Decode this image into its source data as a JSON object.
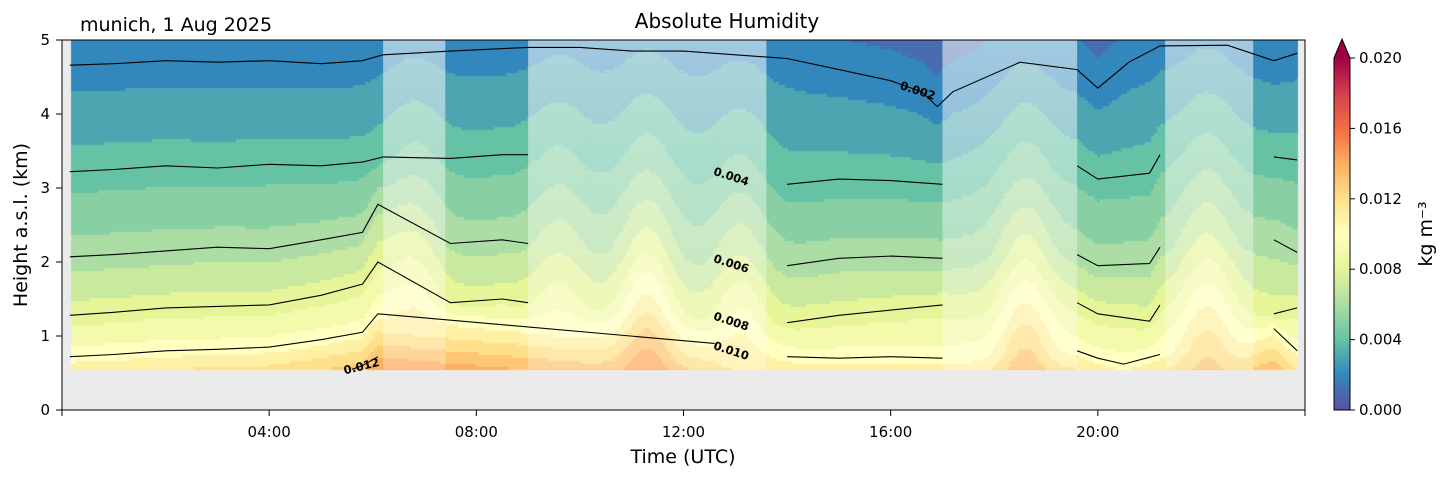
{
  "header": {
    "station_label": "munich, 1 Aug 2025",
    "title": "Absolute Humidity"
  },
  "chart_data": {
    "type": "contourf",
    "title": "Absolute Humidity",
    "subtitle": "munich, 1 Aug 2025",
    "xlabel": "Time (UTC)",
    "ylabel": "Height a.s.l. (km)",
    "xlim_hours": [
      0,
      24
    ],
    "ylim_km": [
      0,
      5
    ],
    "x_ticks": [
      {
        "hour": 4,
        "label": "04:00"
      },
      {
        "hour": 8,
        "label": "08:00"
      },
      {
        "hour": 12,
        "label": "12:00"
      },
      {
        "hour": 16,
        "label": "16:00"
      },
      {
        "hour": 20,
        "label": "20:00"
      }
    ],
    "y_ticks": [
      {
        "value": 0,
        "label": "0"
      },
      {
        "value": 1,
        "label": "1"
      },
      {
        "value": 2,
        "label": "2"
      },
      {
        "value": 3,
        "label": "3"
      },
      {
        "value": 4,
        "label": "4"
      },
      {
        "value": 5,
        "label": "5"
      }
    ],
    "data_bottom_km": 0.55,
    "data_start_hour": 0.15,
    "data_end_hour": 23.85,
    "colorbar": {
      "label": "kg m⁻³",
      "min": 0.0,
      "max": 0.02,
      "extend": "max",
      "ticks": [
        {
          "value": 0.0,
          "label": "0.000"
        },
        {
          "value": 0.004,
          "label": "0.004"
        },
        {
          "value": 0.008,
          "label": "0.008"
        },
        {
          "value": 0.012,
          "label": "0.012"
        },
        {
          "value": 0.016,
          "label": "0.016"
        },
        {
          "value": 0.02,
          "label": "0.020"
        }
      ],
      "colormap": [
        "#5e4fa2",
        "#3288bd",
        "#66c2a5",
        "#abdda4",
        "#e6f598",
        "#ffffbf",
        "#fee08b",
        "#fdae61",
        "#f46d43",
        "#d53e4f",
        "#9e0142"
      ]
    },
    "contour_lines": [
      {
        "level": 0.002,
        "label": "0.002",
        "label_hour": 16.5,
        "points": [
          [
            0.15,
            4.66
          ],
          [
            1,
            4.68
          ],
          [
            2,
            4.72
          ],
          [
            3,
            4.7
          ],
          [
            4,
            4.72
          ],
          [
            5,
            4.68
          ],
          [
            5.8,
            4.72
          ],
          [
            6.2,
            4.8
          ],
          [
            7.5,
            4.85
          ],
          [
            9,
            4.9
          ],
          [
            10,
            4.9
          ],
          [
            11,
            4.85
          ],
          [
            12,
            4.85
          ],
          [
            13,
            4.8
          ],
          [
            14,
            4.75
          ],
          [
            15,
            4.6
          ],
          [
            16,
            4.45
          ],
          [
            16.6,
            4.3
          ],
          [
            16.9,
            4.1
          ],
          [
            17.2,
            4.3
          ],
          [
            18.5,
            4.7
          ],
          [
            19.6,
            4.6
          ],
          [
            20,
            4.35
          ],
          [
            20.6,
            4.7
          ],
          [
            21.2,
            4.92
          ],
          [
            22.5,
            4.93
          ],
          [
            23.4,
            4.72
          ],
          [
            23.85,
            4.82
          ]
        ]
      },
      {
        "level": 0.004,
        "label": "0.004",
        "label_hour": 12.9,
        "points": [
          [
            0.15,
            3.22
          ],
          [
            1,
            3.25
          ],
          [
            2,
            3.3
          ],
          [
            3,
            3.27
          ],
          [
            4,
            3.32
          ],
          [
            5,
            3.3
          ],
          [
            5.8,
            3.35
          ],
          [
            6.2,
            3.42
          ],
          [
            7.5,
            3.4
          ],
          [
            8.5,
            3.45
          ],
          [
            9,
            3.45
          ],
          [
            10,
            3.4
          ],
          [
            11,
            3.35
          ],
          [
            12,
            3.3
          ],
          [
            13,
            3.15
          ],
          [
            14,
            3.05
          ],
          [
            15,
            3.12
          ],
          [
            16,
            3.1
          ],
          [
            17,
            3.05
          ],
          [
            18,
            3.25
          ],
          [
            19.6,
            3.3
          ],
          [
            20,
            3.12
          ],
          [
            21,
            3.2
          ],
          [
            21.2,
            3.45
          ],
          [
            22.5,
            3.48
          ],
          [
            23.4,
            3.42
          ],
          [
            23.85,
            3.38
          ]
        ]
      },
      {
        "level": 0.006,
        "label": "0.006",
        "label_hour": 12.9,
        "points": [
          [
            0.15,
            2.07
          ],
          [
            1,
            2.1
          ],
          [
            2,
            2.15
          ],
          [
            3,
            2.2
          ],
          [
            4,
            2.18
          ],
          [
            5,
            2.3
          ],
          [
            5.8,
            2.4
          ],
          [
            6.1,
            2.78
          ],
          [
            7.5,
            2.25
          ],
          [
            8.5,
            2.3
          ],
          [
            9,
            2.25
          ],
          [
            10,
            2.2
          ],
          [
            11,
            2.15
          ],
          [
            12,
            2.05
          ],
          [
            13,
            1.98
          ],
          [
            14,
            1.95
          ],
          [
            15,
            2.05
          ],
          [
            16,
            2.08
          ],
          [
            17,
            2.05
          ],
          [
            18,
            2.1
          ],
          [
            19.6,
            2.1
          ],
          [
            20,
            1.95
          ],
          [
            21,
            1.98
          ],
          [
            21.2,
            2.2
          ],
          [
            22.5,
            2.25
          ],
          [
            23.4,
            2.3
          ],
          [
            23.85,
            2.13
          ]
        ]
      },
      {
        "level": 0.008,
        "label": "0.008",
        "label_hour": 12.9,
        "points": [
          [
            0.15,
            1.28
          ],
          [
            1,
            1.32
          ],
          [
            2,
            1.38
          ],
          [
            3,
            1.4
          ],
          [
            4,
            1.42
          ],
          [
            5,
            1.55
          ],
          [
            5.8,
            1.7
          ],
          [
            6.1,
            2.0
          ],
          [
            7.5,
            1.45
          ],
          [
            8.5,
            1.5
          ],
          [
            9,
            1.45
          ],
          [
            10,
            1.4
          ],
          [
            11,
            1.35
          ],
          [
            12,
            1.28
          ],
          [
            13,
            1.2
          ],
          [
            14,
            1.18
          ],
          [
            15,
            1.28
          ],
          [
            16,
            1.35
          ],
          [
            17,
            1.42
          ],
          [
            18,
            1.35
          ],
          [
            19.6,
            1.45
          ],
          [
            20,
            1.3
          ],
          [
            21,
            1.2
          ],
          [
            21.2,
            1.42
          ],
          [
            22.5,
            1.45
          ],
          [
            23.4,
            1.3
          ],
          [
            23.85,
            1.38
          ]
        ]
      },
      {
        "level": 0.01,
        "label": "0.010",
        "label_hour": 12.9,
        "points": [
          [
            0.15,
            0.72
          ],
          [
            1,
            0.75
          ],
          [
            2,
            0.8
          ],
          [
            3,
            0.82
          ],
          [
            4,
            0.85
          ],
          [
            5,
            0.95
          ],
          [
            5.8,
            1.05
          ],
          [
            6.1,
            1.3
          ],
          [
            12.6,
            0.9
          ],
          [
            13,
            0.78
          ],
          [
            14,
            0.72
          ],
          [
            15,
            0.7
          ],
          [
            16,
            0.72
          ],
          [
            17,
            0.7
          ],
          [
            18,
            0.72
          ],
          [
            19.6,
            0.8
          ],
          [
            20,
            0.7
          ],
          [
            20.5,
            0.62
          ],
          [
            21.2,
            0.75
          ],
          [
            22.5,
            0.82
          ],
          [
            23.4,
            1.1
          ],
          [
            23.85,
            0.8
          ]
        ]
      },
      {
        "level": 0.012,
        "label": "0.012",
        "label_hour": 5.8,
        "points": [
          [
            5.6,
            0.55
          ],
          [
            5.8,
            0.6
          ],
          [
            6.1,
            0.72
          ]
        ]
      }
    ],
    "shaded_gaps_hours": [
      [
        6.2,
        7.4
      ],
      [
        9.0,
        10.1
      ],
      [
        10.1,
        12.6
      ],
      [
        12.6,
        13.6
      ],
      [
        17.0,
        19.6
      ],
      [
        21.3,
        23.0
      ]
    ],
    "moist_peaks": [
      {
        "hour": 6.8,
        "value": 0.0115
      },
      {
        "hour": 9.6,
        "value": 0.0105
      },
      {
        "hour": 11.3,
        "value": 0.0145
      },
      {
        "hour": 13.1,
        "value": 0.0115
      },
      {
        "hour": 18.6,
        "value": 0.0135
      },
      {
        "hour": 22.1,
        "value": 0.013
      }
    ]
  }
}
